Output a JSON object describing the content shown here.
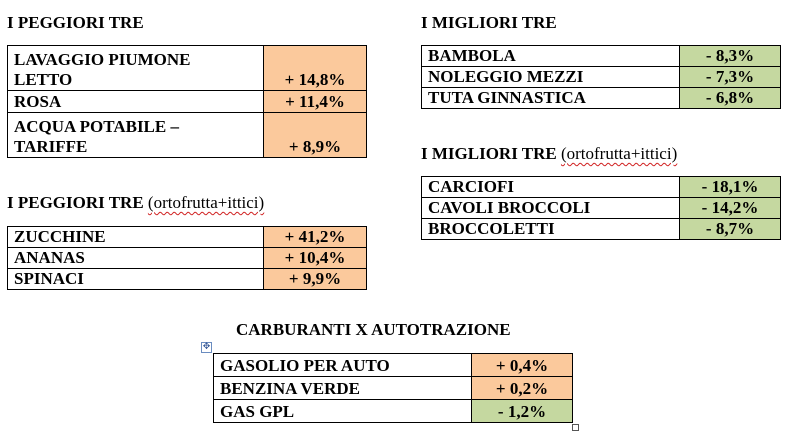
{
  "worst": {
    "title": "I PEGGIORI TRE",
    "rows": [
      {
        "label_lines": [
          "LAVAGGIO PIUMONE",
          "LETTO"
        ],
        "value": "+ 14,8%"
      },
      {
        "label_lines": [
          "ROSA"
        ],
        "value": "+ 11,4%"
      },
      {
        "label_lines": [
          "ACQUA POTABILE –",
          "TARIFFE"
        ],
        "value": "+ 8,9%"
      }
    ]
  },
  "best": {
    "title": "I MIGLIORI TRE",
    "rows": [
      {
        "label": "BAMBOLA",
        "value": "- 8,3%"
      },
      {
        "label": "NOLEGGIO MEZZI",
        "value": "- 7,3%"
      },
      {
        "label": "TUTA GINNASTICA",
        "value": "- 6,8%"
      }
    ]
  },
  "worst_produce": {
    "title": "I PEGGIORI TRE",
    "subtitle": "(ortofrutta+ittici)",
    "rows": [
      {
        "label": "ZUCCHINE",
        "value": "+ 41,2%"
      },
      {
        "label": "ANANAS",
        "value": "+ 10,4%"
      },
      {
        "label": "SPINACI",
        "value": "+ 9,9%"
      }
    ]
  },
  "best_produce": {
    "title": "I MIGLIORI TRE",
    "subtitle": "(ortofrutta+ittici)",
    "rows": [
      {
        "label": "CARCIOFI",
        "value": "- 18,1%"
      },
      {
        "label": "CAVOLI BROCCOLI",
        "value": "- 14,2%"
      },
      {
        "label": "BROCCOLETTI",
        "value": "- 8,7%"
      }
    ]
  },
  "fuel": {
    "title": "CARBURANTI X AUTOTRAZIONE",
    "rows": [
      {
        "label": "GASOLIO PER AUTO",
        "value": "+ 0,4%",
        "status": "up"
      },
      {
        "label": "BENZINA VERDE",
        "value": "+ 0,2%",
        "status": "up"
      },
      {
        "label": "GAS GPL",
        "value": "- 1,2%",
        "status": "down"
      }
    ]
  },
  "colors": {
    "increase_cell": "#fbc99c",
    "decrease_cell": "#c5d8a0"
  },
  "icons": {
    "table_anchor": "move-anchor-icon",
    "table_resize": "resize-handle-icon"
  }
}
